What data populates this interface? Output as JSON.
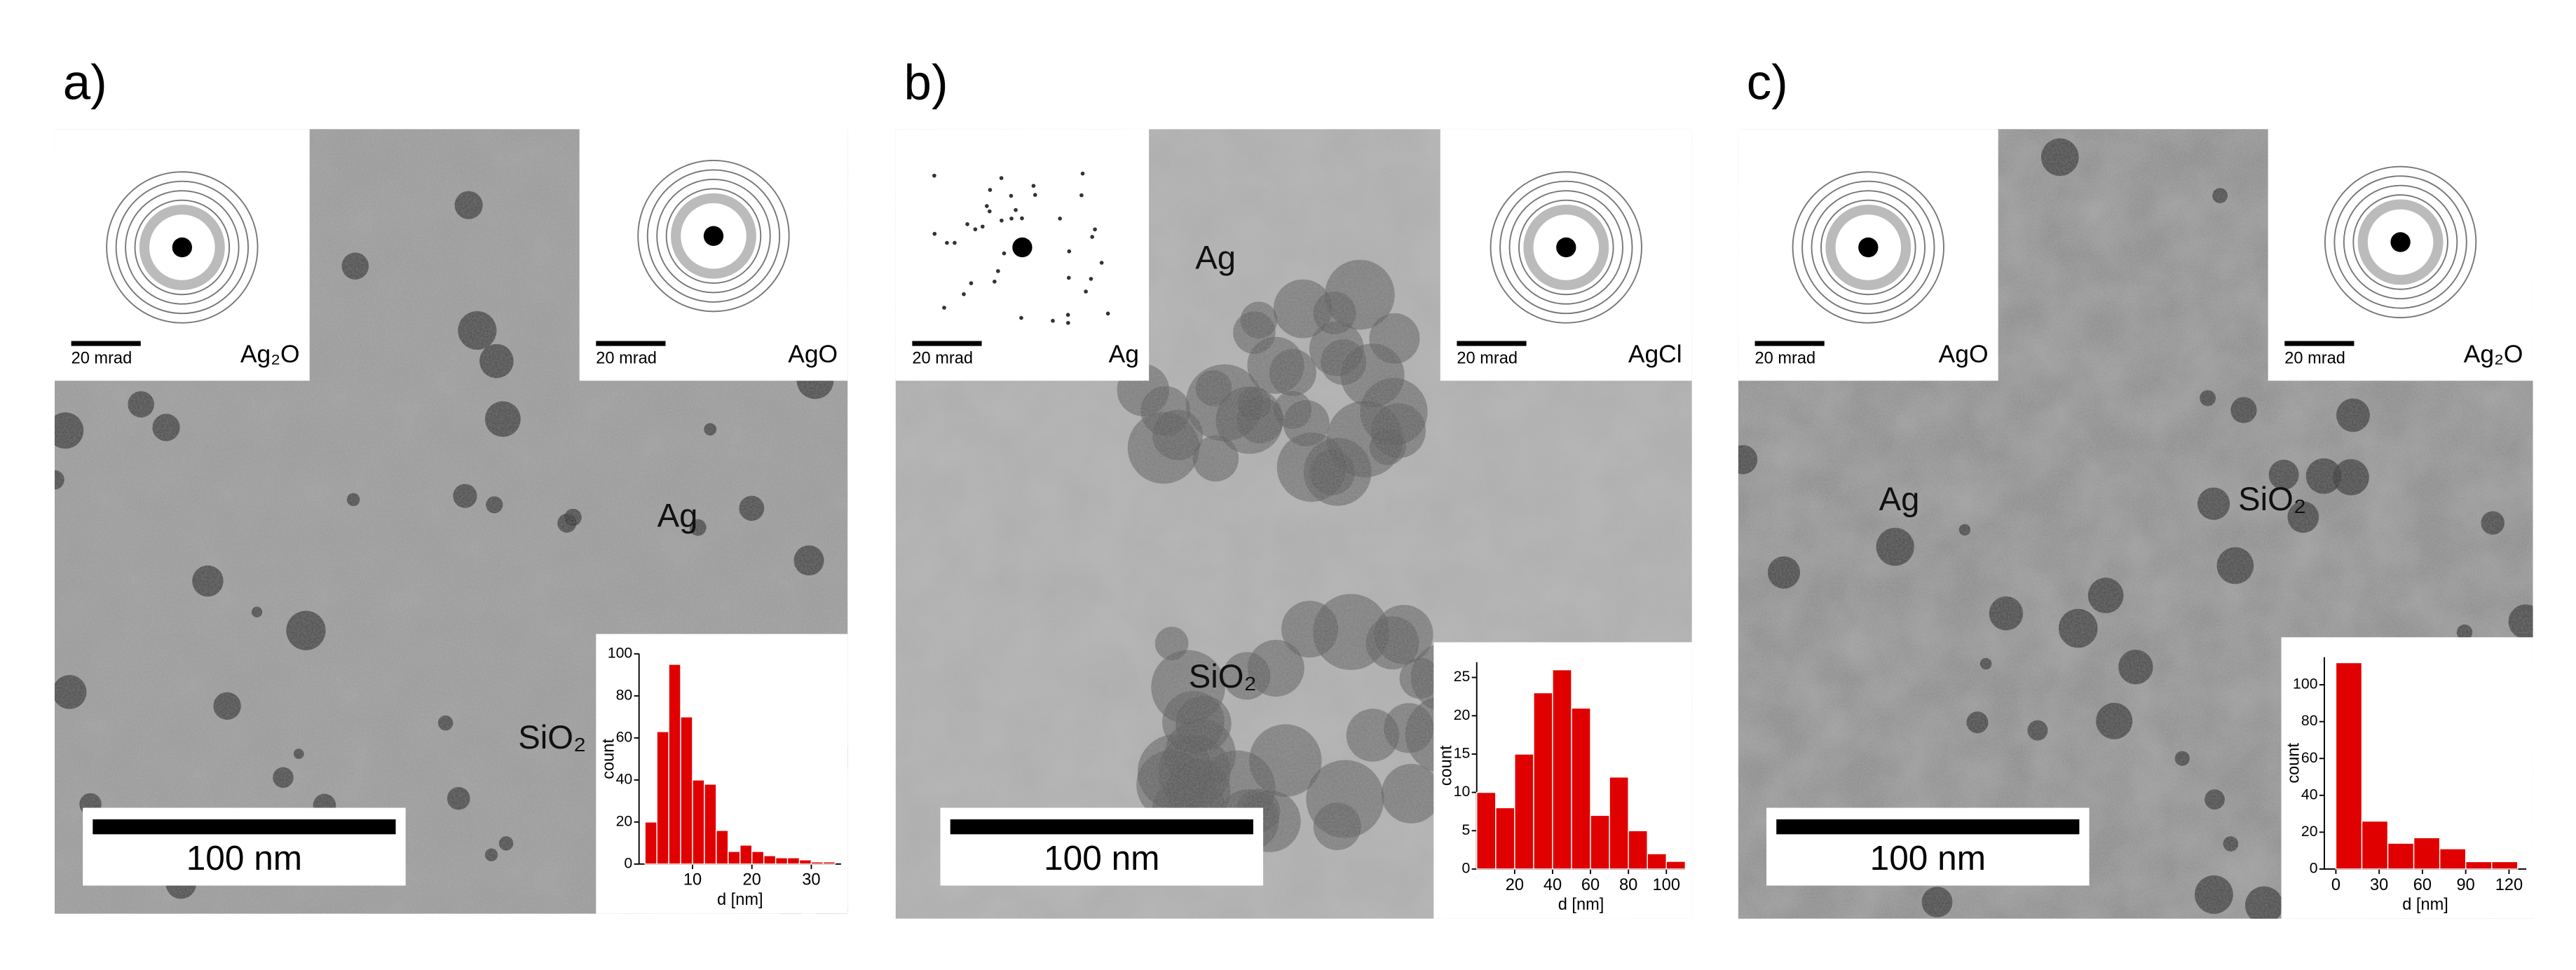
{
  "panels": [
    {
      "label": "a)",
      "saed": [
        {
          "label": "Ag₂O",
          "scale": "20 mrad"
        },
        {
          "label": "AgO",
          "scale": "20 mrad"
        }
      ],
      "annotations": [
        "Ag",
        "SiO₂"
      ],
      "scale_bar": "100 nm",
      "histogram": {
        "type": "bar",
        "ylabel": "count",
        "xlabel": "d [nm]",
        "color": "#e00000",
        "bins": [
          2,
          4,
          6,
          8,
          10,
          12,
          14,
          16,
          18,
          20,
          22,
          24,
          26,
          28,
          30,
          32,
          34
        ],
        "values": [
          20,
          63,
          95,
          70,
          40,
          38,
          16,
          6,
          9,
          6,
          4,
          3,
          3,
          2,
          1,
          1
        ],
        "xlim": [
          1,
          35
        ],
        "xticks": [
          10,
          20,
          30
        ],
        "ylim": [
          0,
          100
        ],
        "yticks": [
          0,
          20,
          40,
          60,
          80,
          100
        ]
      }
    },
    {
      "label": "b)",
      "saed": [
        {
          "label": "Ag",
          "scale": "20 mrad"
        },
        {
          "label": "AgCl",
          "scale": "20 mrad"
        }
      ],
      "annotations": [
        "Ag",
        "SiO₂"
      ],
      "scale_bar": "100 nm",
      "histogram": {
        "type": "bar",
        "ylabel": "count",
        "xlabel": "d [nm]",
        "color": "#e00000",
        "bins": [
          0,
          10,
          20,
          30,
          40,
          50,
          60,
          70,
          80,
          90,
          100,
          110
        ],
        "values": [
          10,
          8,
          15,
          23,
          26,
          21,
          7,
          12,
          5,
          2,
          1
        ],
        "xlim": [
          0,
          110
        ],
        "xticks": [
          20,
          40,
          60,
          80,
          100
        ],
        "ylim": [
          0,
          27
        ],
        "yticks": [
          0,
          5,
          10,
          15,
          20,
          25
        ]
      }
    },
    {
      "label": "c)",
      "saed": [
        {
          "label": "AgO",
          "scale": "20 mrad"
        },
        {
          "label": "Ag₂O",
          "scale": "20 mrad"
        }
      ],
      "annotations": [
        "Ag",
        "SiO₂"
      ],
      "scale_bar": "100 nm",
      "histogram": {
        "type": "bar",
        "ylabel": "count",
        "xlabel": "d [nm]",
        "color": "#e00000",
        "bins": [
          0,
          18,
          36,
          54,
          72,
          90,
          108,
          126
        ],
        "values": [
          112,
          26,
          14,
          17,
          11,
          4,
          4
        ],
        "xlim": [
          -8,
          132
        ],
        "xticks": [
          0,
          30,
          60,
          90,
          120
        ],
        "ylim": [
          0,
          115
        ],
        "yticks": [
          0,
          20,
          40,
          60,
          80,
          100
        ]
      }
    }
  ]
}
